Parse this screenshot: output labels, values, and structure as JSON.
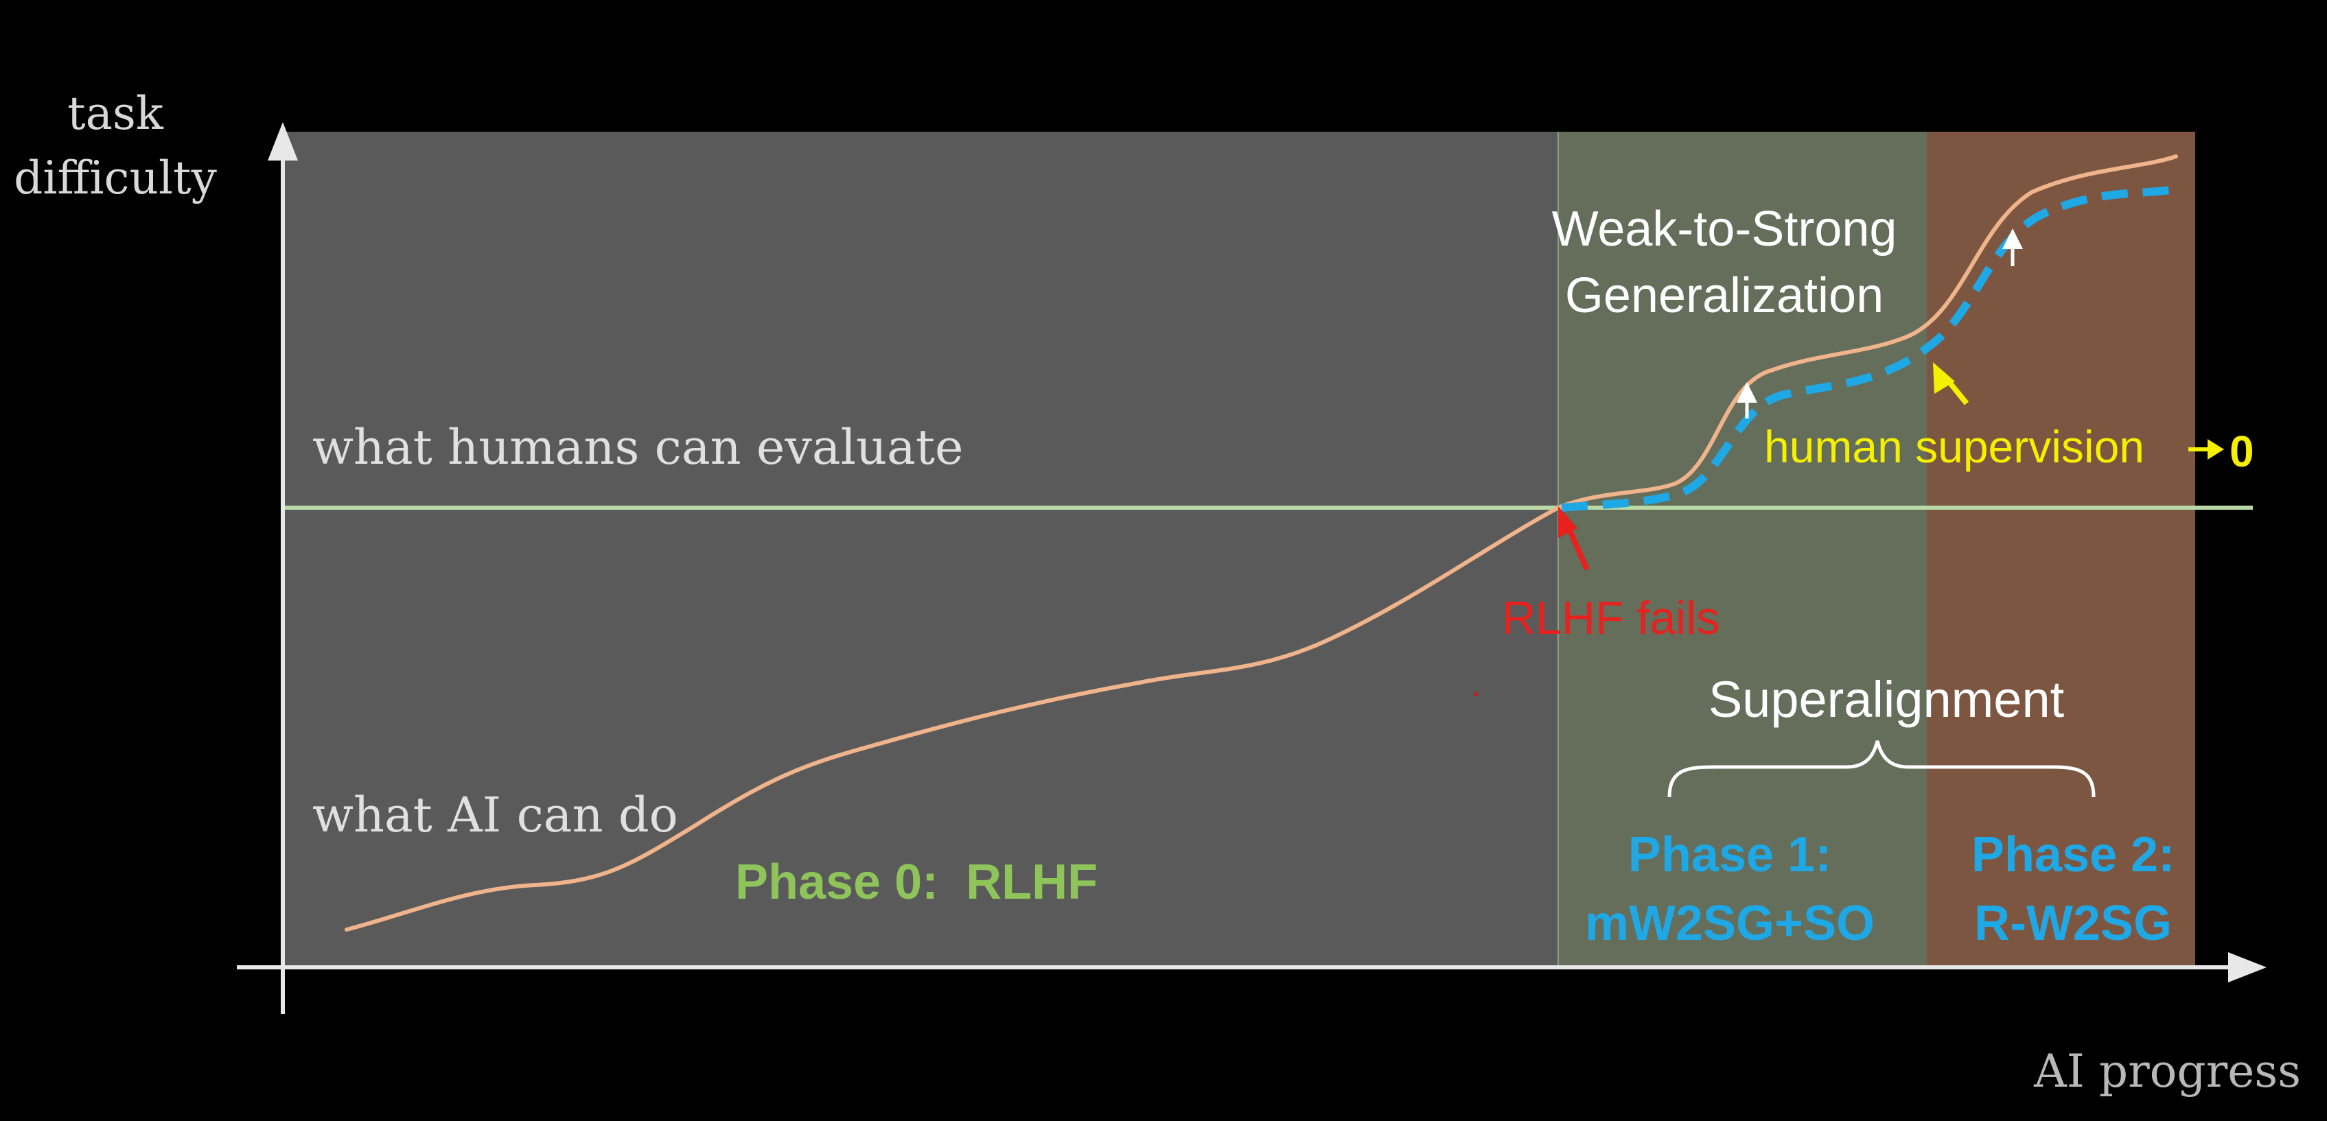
{
  "axes": {
    "y_label_line1": "task",
    "y_label_line2": "difficulty",
    "x_label": "AI progress"
  },
  "lines": {
    "human_eval_label": "what humans can evaluate",
    "ai_capability_label": "what AI can do"
  },
  "annotations": {
    "w2s_line1": "Weak-to-Strong",
    "w2s_line2": "Generalization",
    "human_supervision": "human supervision",
    "human_supervision_suffix": "0",
    "rlhf_fails": "RLHF fails",
    "superalignment": "Superalignment"
  },
  "phases": {
    "phase0": "Phase 0:  RLHF",
    "phase1_line1": "Phase 1:",
    "phase1_line2": "mW2SG+SO",
    "phase2_line1": "Phase 2:",
    "phase2_line2": "R-W2SG"
  },
  "colors": {
    "background": "#000000",
    "phase0_region": "#5a5a5a",
    "phase1_region": "#646e5a",
    "phase2_region": "#7c5640",
    "human_line": "#b9d9a6",
    "ai_curve": "#f0b48c",
    "supervised_curve": "#1fa8e6",
    "phase0_text": "#8fc45a",
    "phase_text_blue": "#1fa8e6",
    "rlhf_fails": "#e8201e",
    "human_supervision": "#f5f000",
    "white_text": "#ffffff"
  }
}
